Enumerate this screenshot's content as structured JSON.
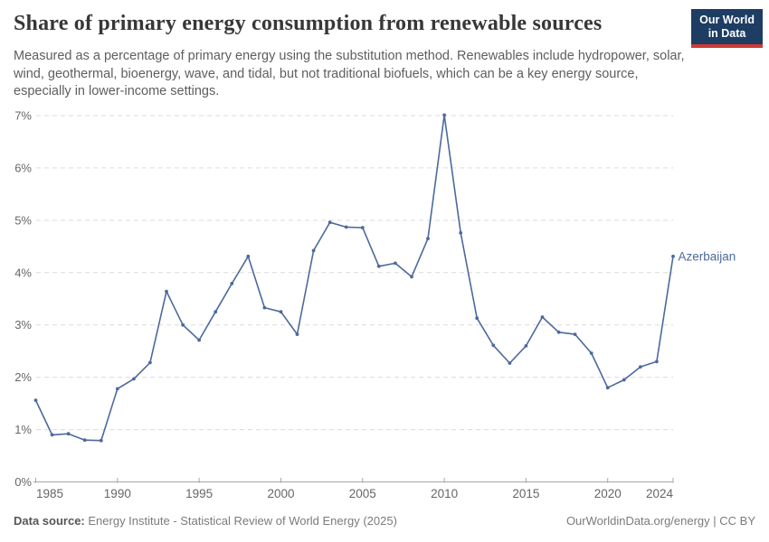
{
  "header": {
    "title": "Share of primary energy consumption from renewable sources",
    "subtitle": "Measured as a percentage of primary energy using the substitution method. Renewables include hydropower, solar, wind, geothermal, bioenergy, wave, and tidal, but not traditional biofuels, which can be a key energy source, especially in lower-income settings.",
    "logo": {
      "line1": "Our World",
      "line2": "in Data",
      "bg_color": "#1d3d63",
      "accent_color": "#d13a34"
    }
  },
  "chart_data": {
    "type": "line",
    "title": "Share of primary energy consumption from renewable sources",
    "subtitle": "Measured as a percentage of primary energy using the substitution method.",
    "xlabel": "",
    "ylabel": "",
    "xlim": [
      1985,
      2024
    ],
    "ylim": [
      0,
      7
    ],
    "grid": true,
    "grid_style": "dashed",
    "legend_position": "end-of-line-label",
    "x_ticks": [
      1985,
      1990,
      1995,
      2000,
      2005,
      2010,
      2015,
      2020,
      2024
    ],
    "y_ticks": [
      "0%",
      "1%",
      "2%",
      "3%",
      "4%",
      "5%",
      "6%",
      "7%"
    ],
    "series": [
      {
        "name": "Azerbaijan",
        "color": "#4c6a9c",
        "x": [
          1985,
          1986,
          1987,
          1988,
          1989,
          1990,
          1991,
          1992,
          1993,
          1994,
          1995,
          1996,
          1997,
          1998,
          1999,
          2000,
          2001,
          2002,
          2003,
          2004,
          2005,
          2006,
          2007,
          2008,
          2009,
          2010,
          2011,
          2012,
          2013,
          2014,
          2015,
          2016,
          2017,
          2018,
          2019,
          2020,
          2021,
          2022,
          2023,
          2024
        ],
        "y": [
          1.56,
          0.9,
          0.92,
          0.8,
          0.79,
          1.78,
          1.97,
          2.28,
          3.64,
          3.0,
          2.71,
          3.25,
          3.79,
          4.31,
          3.33,
          3.25,
          2.82,
          4.42,
          4.96,
          4.87,
          4.86,
          4.12,
          4.18,
          3.92,
          4.65,
          7.01,
          4.76,
          3.13,
          2.61,
          2.27,
          2.6,
          3.15,
          2.86,
          2.82,
          2.46,
          1.8,
          1.95,
          2.2,
          2.3,
          4.31
        ]
      }
    ]
  },
  "footer": {
    "datasource_label": "Data source:",
    "datasource": "Energy Institute - Statistical Review of World Energy (2025)",
    "link": "OurWorldinData.org/energy | CC BY"
  },
  "colors": {
    "line": "#4c6a9c",
    "grid": "#dcdcdc",
    "axis": "#a6a6a6",
    "axis_text": "#666666",
    "title_text": "#373737",
    "subtitle_text": "#5e5e5e"
  }
}
